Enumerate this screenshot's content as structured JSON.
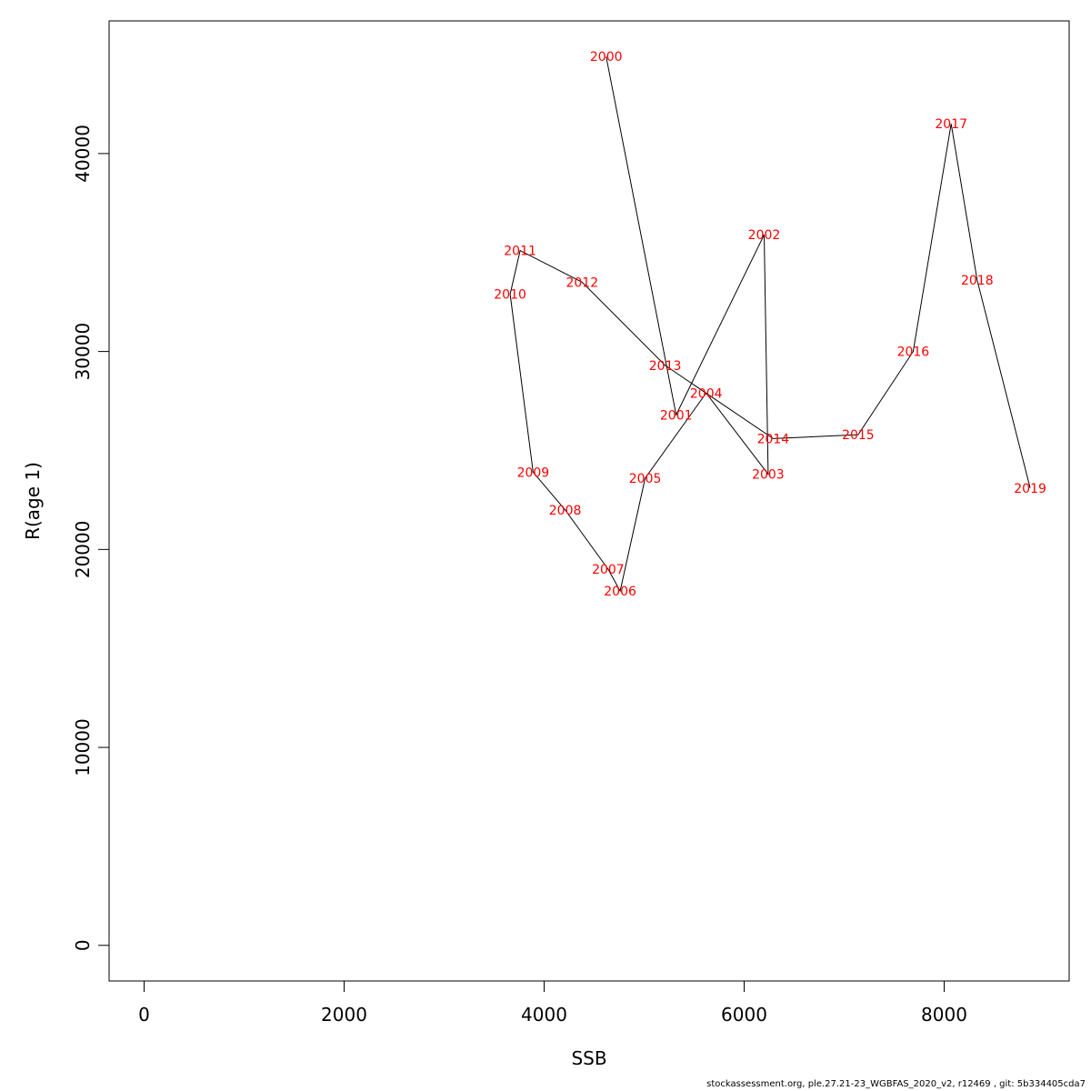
{
  "chart_data": {
    "type": "line",
    "xlabel": "SSB",
    "ylabel": "R(age 1)",
    "xlim": [
      -350,
      9250
    ],
    "ylim": [
      -1800,
      46700
    ],
    "x_ticks": [
      0,
      2000,
      4000,
      6000,
      8000
    ],
    "y_ticks": [
      0,
      10000,
      20000,
      30000,
      40000
    ],
    "grid": false,
    "series_color": "#000000",
    "label_color": "#ff0000",
    "points": [
      {
        "label": "2000",
        "x": 4620,
        "y": 44900
      },
      {
        "label": "2001",
        "x": 5320,
        "y": 26800
      },
      {
        "label": "2002",
        "x": 6200,
        "y": 35900
      },
      {
        "label": "2003",
        "x": 6240,
        "y": 23800
      },
      {
        "label": "2004",
        "x": 5620,
        "y": 27900
      },
      {
        "label": "2005",
        "x": 5010,
        "y": 23600
      },
      {
        "label": "2006",
        "x": 4760,
        "y": 17900
      },
      {
        "label": "2007",
        "x": 4640,
        "y": 19000
      },
      {
        "label": "2008",
        "x": 4210,
        "y": 22000
      },
      {
        "label": "2009",
        "x": 3890,
        "y": 23900
      },
      {
        "label": "2010",
        "x": 3660,
        "y": 32900
      },
      {
        "label": "2011",
        "x": 3760,
        "y": 35100
      },
      {
        "label": "2012",
        "x": 4380,
        "y": 33500
      },
      {
        "label": "2013",
        "x": 5210,
        "y": 29300
      },
      {
        "label": "2014",
        "x": 6290,
        "y": 25600
      },
      {
        "label": "2015",
        "x": 7140,
        "y": 25800
      },
      {
        "label": "2016",
        "x": 7690,
        "y": 30000
      },
      {
        "label": "2017",
        "x": 8070,
        "y": 41500
      },
      {
        "label": "2018",
        "x": 8330,
        "y": 33600
      },
      {
        "label": "2019",
        "x": 8860,
        "y": 23100
      }
    ]
  },
  "footer": "stockassessment.org, ple.27.21-23_WGBFAS_2020_v2, r12469 , git: 5b334405cda7"
}
